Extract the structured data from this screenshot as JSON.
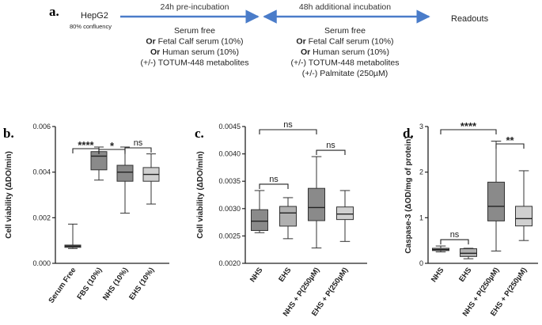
{
  "panel_a": {
    "letter": "a.",
    "cells": "HepG2",
    "confluency": "80% confluency",
    "step1_label": "24h pre-incubation",
    "step2_label": "48h additional incubation",
    "readouts": "Readouts",
    "step1_conditions": [
      "Serum free",
      "Or Fetal Calf serum (10%)",
      "Or Human serum (10%)",
      "(+/-) TOTUM-448 metabolites"
    ],
    "step2_conditions": [
      "Serum free",
      "Or Fetal Calf serum (10%)",
      "Or Human serum (10%)",
      "(+/-) TOTUM-448 metabolites",
      "(+/-) Palmitate (250µM)"
    ],
    "arrow_color": "#4a7cc9"
  },
  "chart_data": [
    {
      "type": "boxplot",
      "panel": "b.",
      "ylabel": "Cell viability (ΔDO/min)",
      "ylim": [
        0,
        0.006
      ],
      "yticks": [
        0.0,
        0.002,
        0.004,
        0.006
      ],
      "ytick_labels": [
        "0.000",
        "0.002",
        "0.004",
        "0.006"
      ],
      "categories": [
        "Serum Free",
        "FBS (10%)",
        "NHS (10%)",
        "EHS (10%)"
      ],
      "colors": [
        "#8a8a8a",
        "#8a8a8a",
        "#8a8a8a",
        "#d0d0d0"
      ],
      "boxes": [
        {
          "min": 0.00065,
          "q1": 0.0007,
          "median": 0.00075,
          "q3": 0.0008,
          "max": 0.00172
        },
        {
          "min": 0.00365,
          "q1": 0.0041,
          "median": 0.0047,
          "q3": 0.0049,
          "max": 0.0051
        },
        {
          "min": 0.0022,
          "q1": 0.0036,
          "median": 0.004,
          "q3": 0.0043,
          "max": 0.0051
        },
        {
          "min": 0.0026,
          "q1": 0.0036,
          "median": 0.0039,
          "q3": 0.0042,
          "max": 0.0048
        }
      ],
      "significance": [
        {
          "from": 0,
          "to": 1,
          "label": "****"
        },
        {
          "from": 1,
          "to": 2,
          "label": "*"
        },
        {
          "from": 2,
          "to": 3,
          "label": "ns"
        }
      ]
    },
    {
      "type": "boxplot",
      "panel": "c.",
      "ylabel": "Cell viability (ΔDO/min)",
      "ylim": [
        0.002,
        0.0045
      ],
      "yticks": [
        0.002,
        0.0025,
        0.003,
        0.0035,
        0.004,
        0.0045
      ],
      "ytick_labels": [
        "0.0020",
        "0.0025",
        "0.0030",
        "0.0035",
        "0.0040",
        "0.0045"
      ],
      "categories": [
        "NHS",
        "EHS",
        "NHS + P(250µM)",
        "EHS + P(250µM)"
      ],
      "colors": [
        "#8a8a8a",
        "#b0b0b0",
        "#8a8a8a",
        "#d0d0d0"
      ],
      "boxes": [
        {
          "min": 0.00256,
          "q1": 0.0026,
          "median": 0.00277,
          "q3": 0.00298,
          "max": 0.00333
        },
        {
          "min": 0.00245,
          "q1": 0.00268,
          "median": 0.00292,
          "q3": 0.00304,
          "max": 0.0032
        },
        {
          "min": 0.00228,
          "q1": 0.00278,
          "median": 0.00302,
          "q3": 0.00337,
          "max": 0.00395
        },
        {
          "min": 0.0024,
          "q1": 0.0028,
          "median": 0.0029,
          "q3": 0.00303,
          "max": 0.00333
        }
      ],
      "significance": [
        {
          "from": 0,
          "to": 1,
          "label": "ns"
        },
        {
          "from": 0,
          "to": 2,
          "label": "ns"
        },
        {
          "from": 2,
          "to": 3,
          "label": "ns"
        }
      ]
    },
    {
      "type": "boxplot",
      "panel": "d.",
      "ylabel": "Caspase-3 (ΔOD/mg of protein)",
      "ylim": [
        0,
        3
      ],
      "yticks": [
        0,
        1,
        2,
        3
      ],
      "ytick_labels": [
        "0",
        "1",
        "2",
        "3"
      ],
      "categories": [
        "NHS",
        "EHS",
        "NHS + P(250µM)",
        "EHS + P(250µM)"
      ],
      "colors": [
        "#8a8a8a",
        "#b0b0b0",
        "#8a8a8a",
        "#d0d0d0"
      ],
      "boxes": [
        {
          "min": 0.25,
          "q1": 0.28,
          "median": 0.3,
          "q3": 0.33,
          "max": 0.38
        },
        {
          "min": 0.1,
          "q1": 0.15,
          "median": 0.22,
          "q3": 0.32,
          "max": 0.33
        },
        {
          "min": 0.27,
          "q1": 0.93,
          "median": 1.25,
          "q3": 1.78,
          "max": 2.68
        },
        {
          "min": 0.5,
          "q1": 0.82,
          "median": 0.98,
          "q3": 1.25,
          "max": 2.03
        }
      ],
      "significance": [
        {
          "from": 0,
          "to": 1,
          "label": "ns"
        },
        {
          "from": 0,
          "to": 2,
          "label": "****"
        },
        {
          "from": 2,
          "to": 3,
          "label": "**"
        }
      ]
    }
  ]
}
